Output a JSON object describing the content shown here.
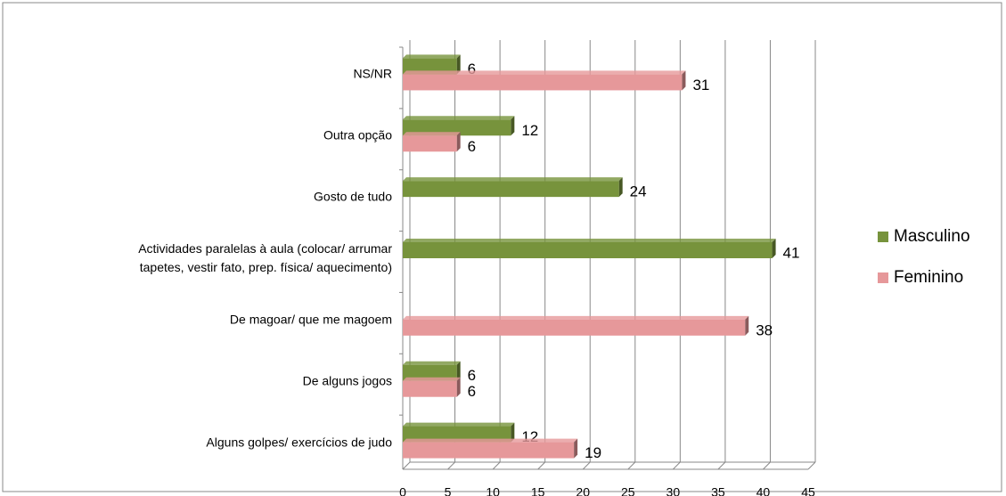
{
  "chart_data": {
    "type": "bar",
    "orientation": "horizontal",
    "categories": [
      "NS/NR",
      "Outra opção",
      "Gosto de tudo",
      "Actividades paralelas à aula (colocar/ arrumar tapetes, vestir fato, prep. física/ aquecimento)",
      "De magoar/ que me magoem",
      "De alguns jogos",
      "Alguns golpes/ exercícios de judo"
    ],
    "series": [
      {
        "name": "Masculino",
        "color": "#77933c",
        "values": [
          6,
          12,
          24,
          41,
          null,
          6,
          12
        ]
      },
      {
        "name": "Feminino",
        "color": "#e6989a",
        "values": [
          31,
          6,
          null,
          null,
          38,
          6,
          19
        ]
      }
    ],
    "xlim": [
      0,
      45
    ],
    "xticks": [
      0,
      5,
      10,
      15,
      20,
      25,
      30,
      35,
      40,
      45
    ],
    "grid": true,
    "legend": "right"
  }
}
